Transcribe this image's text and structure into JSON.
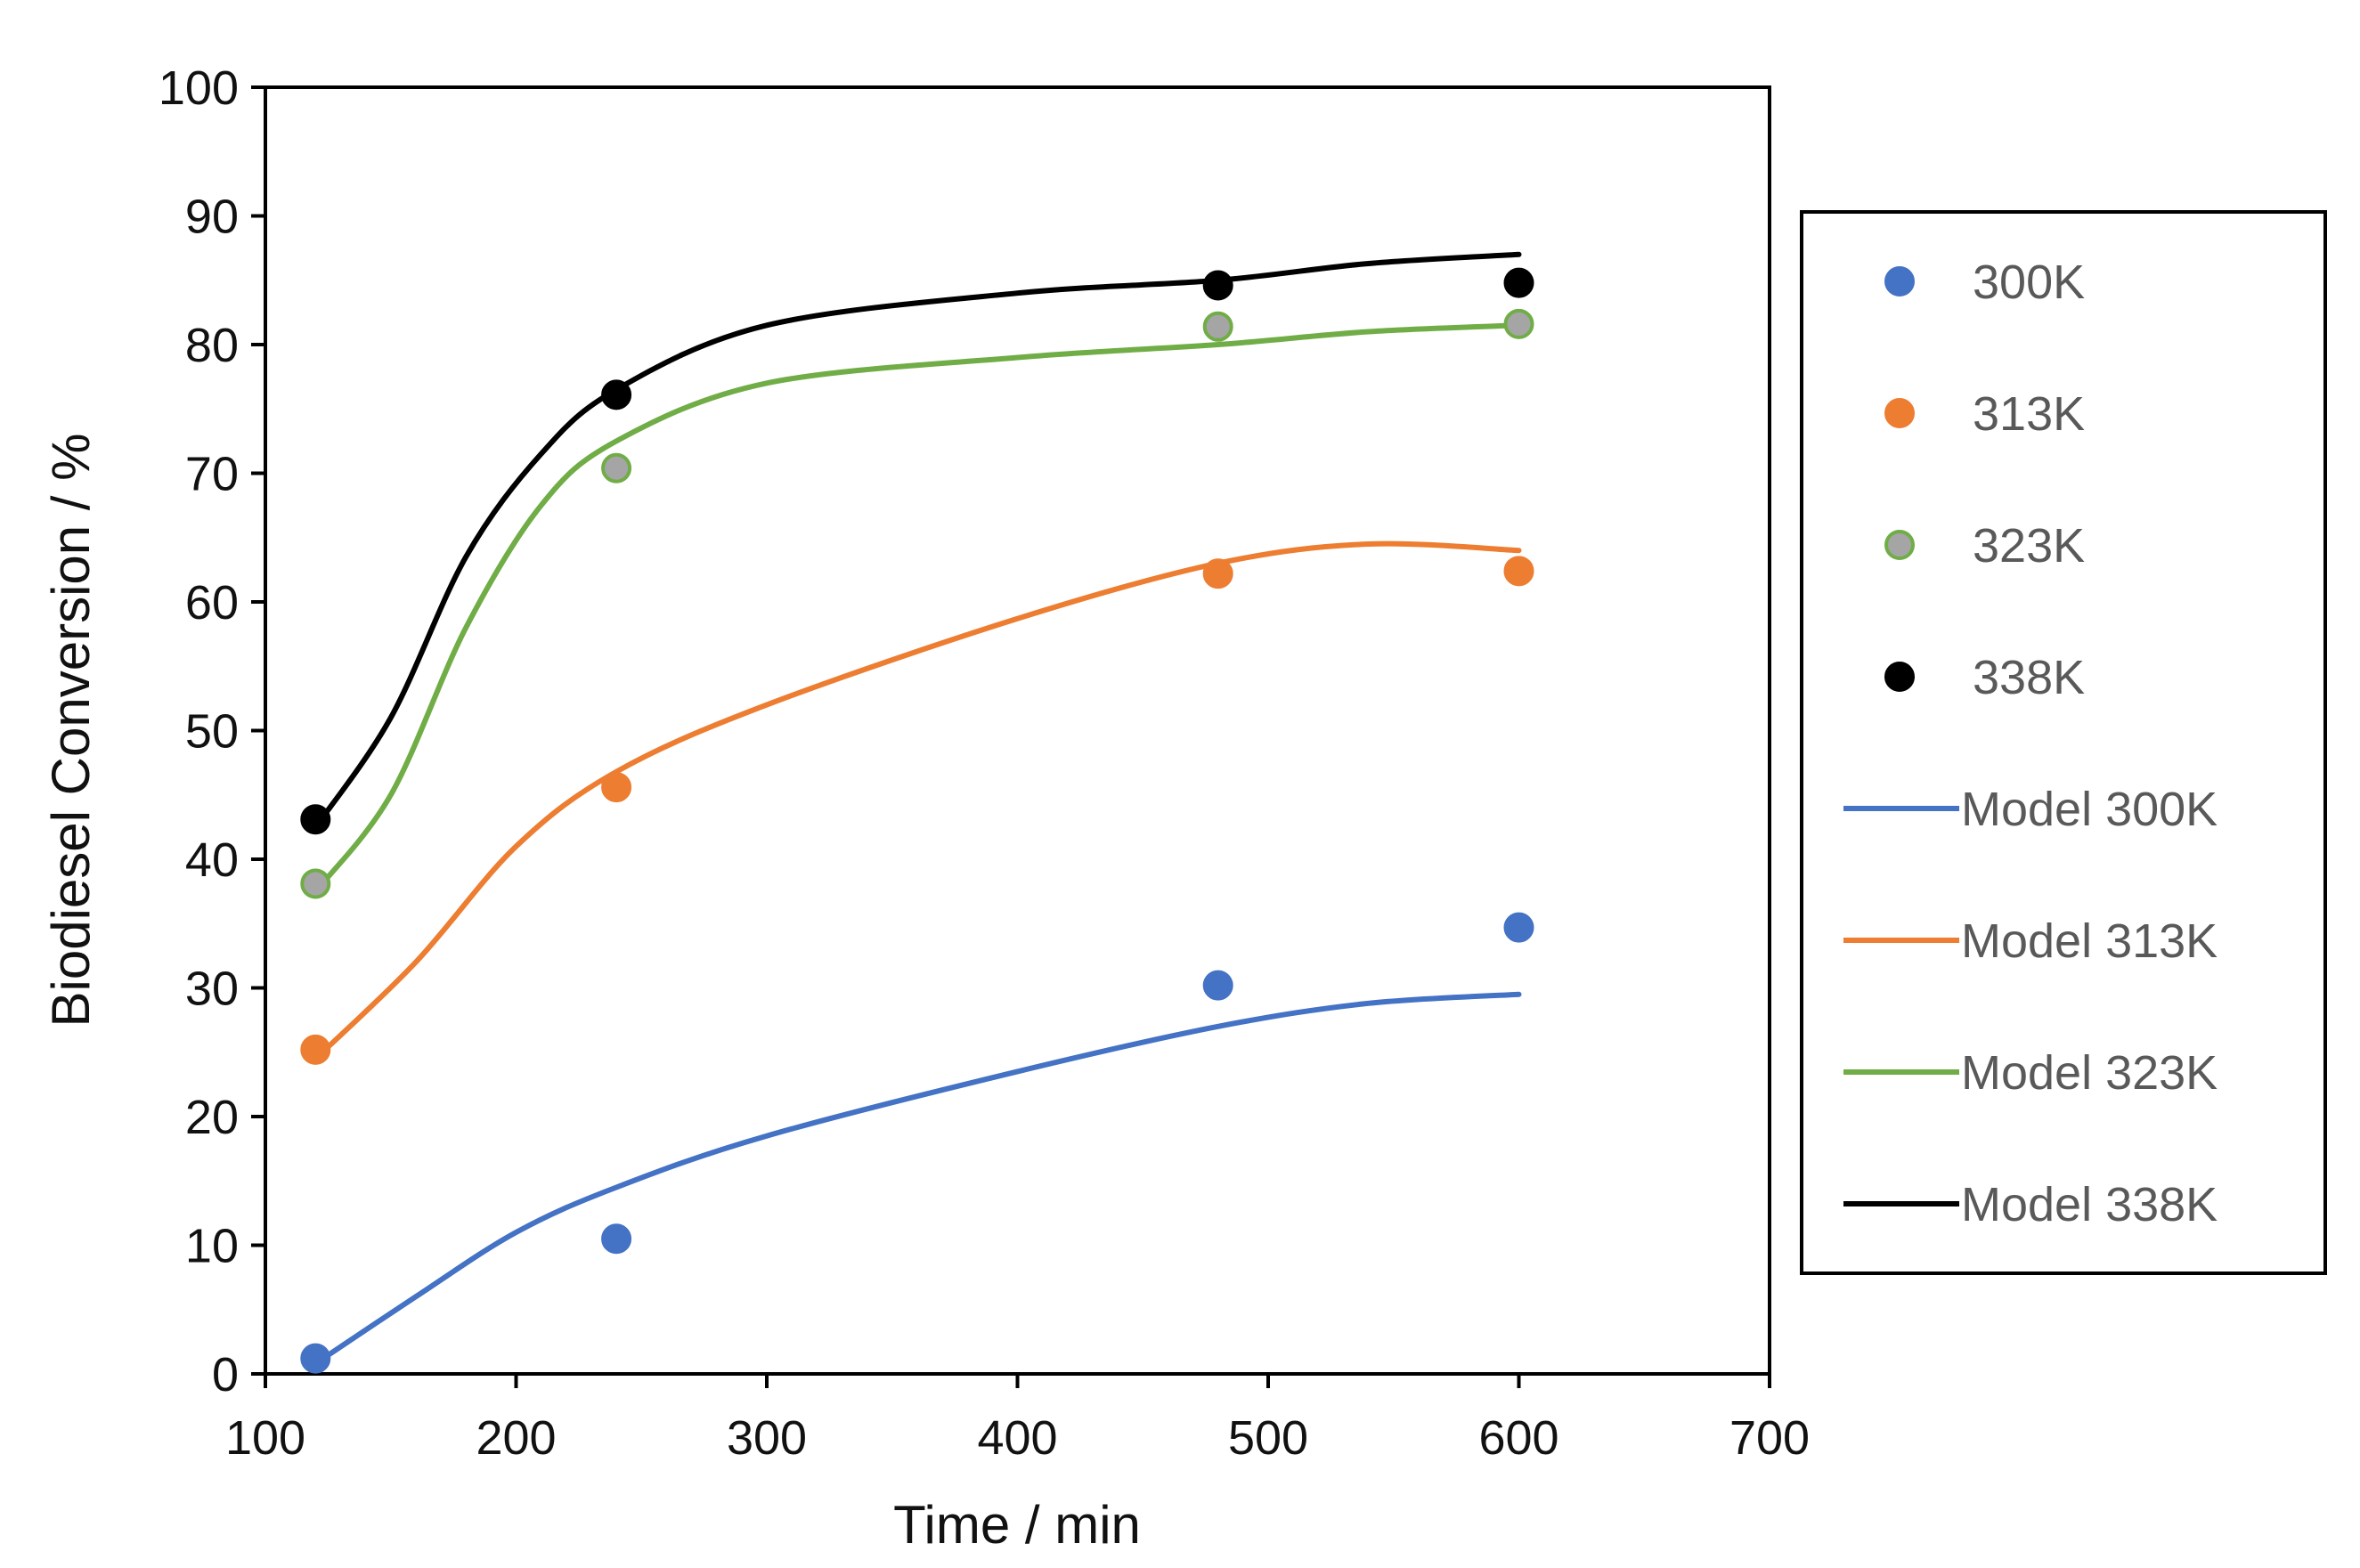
{
  "chart_data": {
    "type": "scatter",
    "title": "",
    "xlabel": "Time / min",
    "ylabel": "Biodiesel Conversion / %",
    "xlim": [
      100,
      700
    ],
    "ylim": [
      0,
      100
    ],
    "xticks": [
      100,
      200,
      300,
      400,
      500,
      600,
      700
    ],
    "yticks": [
      0,
      10,
      20,
      30,
      40,
      50,
      60,
      70,
      80,
      90,
      100
    ],
    "grid": false,
    "legend_position": "right",
    "series": [
      {
        "name": "300K",
        "kind": "markers",
        "color": "#4472C4",
        "edge": "#4472C4",
        "x": [
          120,
          240,
          480,
          600
        ],
        "y": [
          1.2,
          10.5,
          30.2,
          34.7
        ]
      },
      {
        "name": "313K",
        "kind": "markers",
        "color": "#ED7D31",
        "edge": "#ED7D31",
        "x": [
          120,
          240,
          480,
          600
        ],
        "y": [
          25.2,
          45.6,
          62.2,
          62.4
        ]
      },
      {
        "name": "323K",
        "kind": "markers",
        "color": "#A5A5A5",
        "edge": "#70AD47",
        "x": [
          120,
          240,
          480,
          600
        ],
        "y": [
          38.1,
          70.4,
          81.4,
          81.6
        ]
      },
      {
        "name": "338K",
        "kind": "markers",
        "color": "#000000",
        "edge": "#000000",
        "x": [
          120,
          240,
          480,
          600
        ],
        "y": [
          43.1,
          76.1,
          84.6,
          84.8
        ]
      },
      {
        "name": "Model 300K",
        "kind": "line",
        "color": "#4472C4",
        "x": [
          120,
          160,
          200,
          240,
          300,
          400,
          480,
          540,
          600
        ],
        "y": [
          0.8,
          6,
          11,
          14.5,
          18.5,
          23.5,
          27,
          28.8,
          29.5
        ]
      },
      {
        "name": "Model 313K",
        "kind": "line",
        "color": "#ED7D31",
        "x": [
          120,
          160,
          200,
          240,
          300,
          400,
          480,
          540,
          600
        ],
        "y": [
          24.5,
          32,
          41,
          46.8,
          52,
          58.7,
          63,
          64.5,
          64
        ]
      },
      {
        "name": "Model 323K",
        "kind": "line",
        "color": "#70AD47",
        "x": [
          120,
          150,
          180,
          210,
          240,
          300,
          400,
          480,
          540,
          600
        ],
        "y": [
          37.5,
          45,
          58,
          67.5,
          72.5,
          77,
          79,
          80,
          81,
          81.5
        ]
      },
      {
        "name": "Model 338K",
        "kind": "line",
        "color": "#000000",
        "x": [
          120,
          150,
          180,
          210,
          240,
          300,
          400,
          480,
          540,
          600
        ],
        "y": [
          42.5,
          51,
          63.5,
          71.5,
          76.5,
          81.5,
          84,
          85,
          86.3,
          87
        ]
      }
    ]
  }
}
